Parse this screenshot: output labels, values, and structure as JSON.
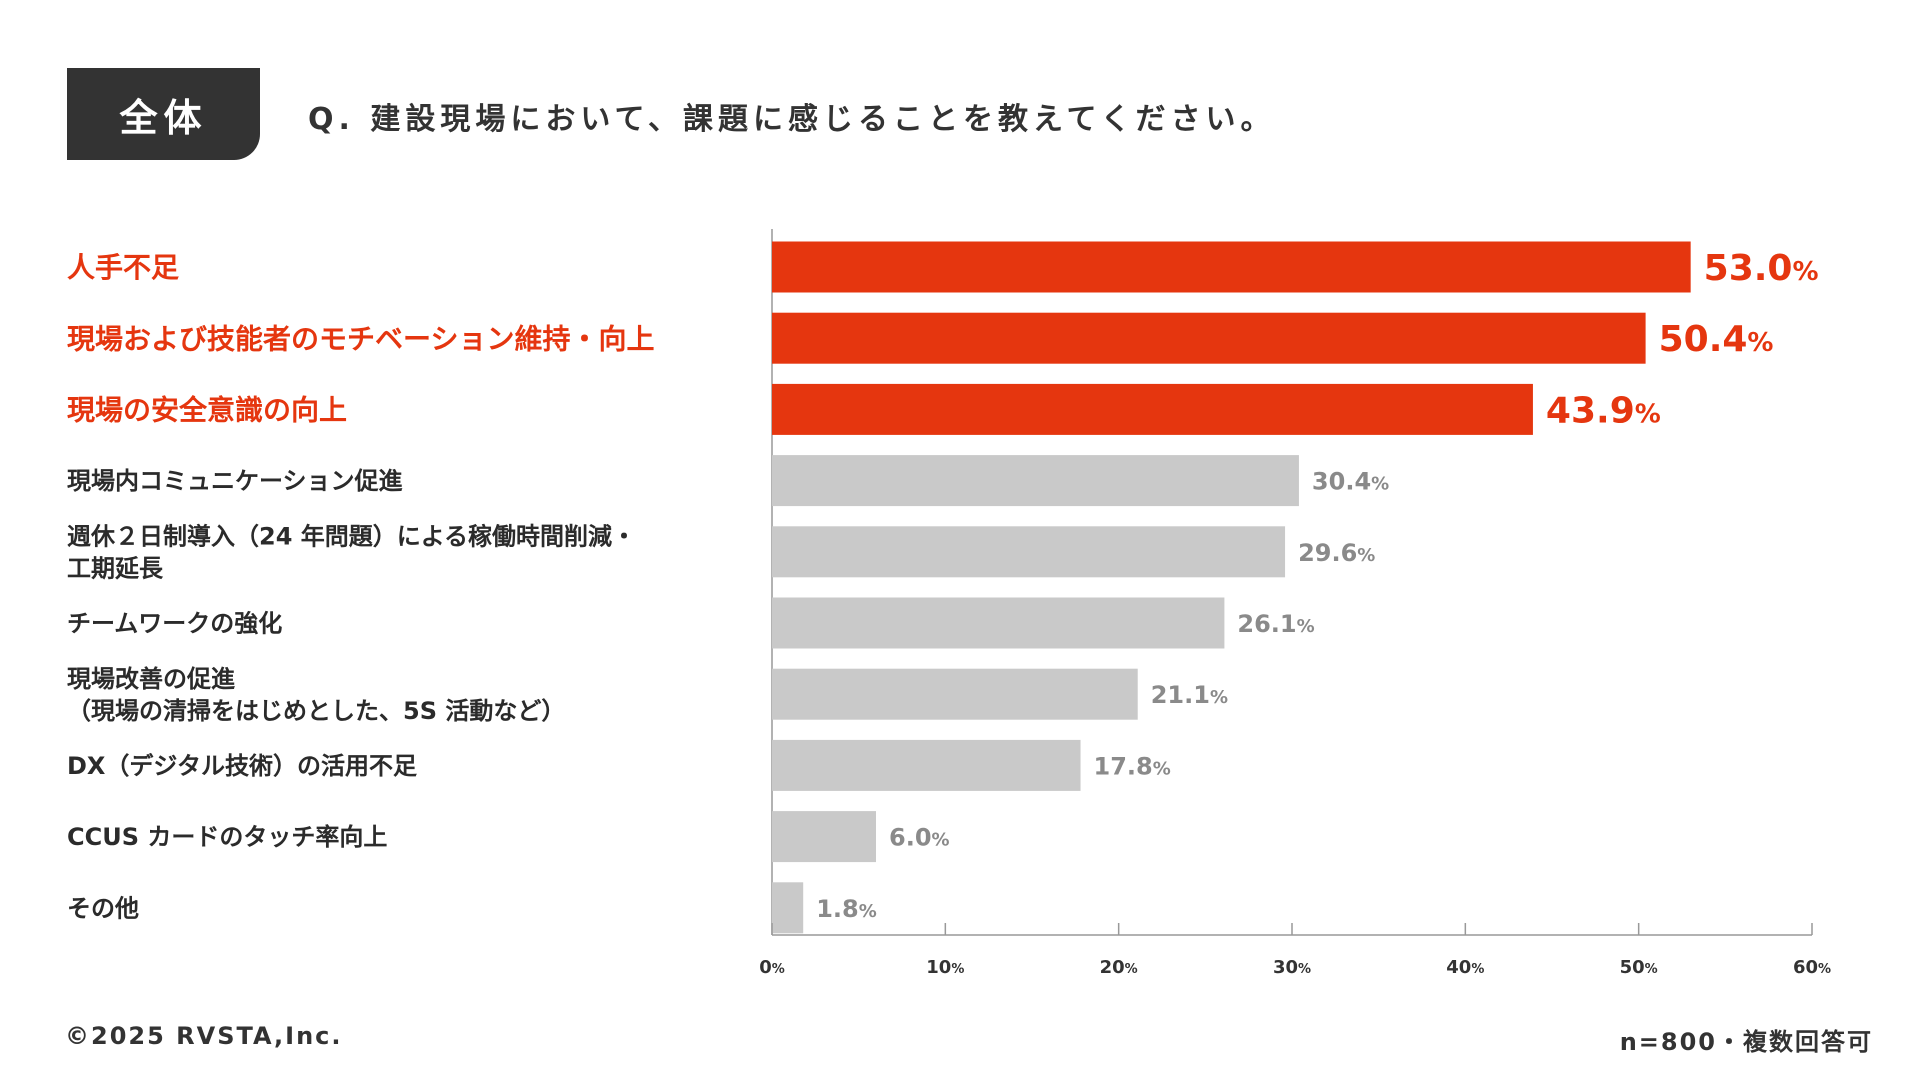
{
  "header": {
    "segment_tag": "全体",
    "question": "Q. 建設現場において、課題に感じることを教えてください。"
  },
  "chart_data": {
    "type": "bar",
    "orientation": "horizontal",
    "categories": [
      [
        "人手不足"
      ],
      [
        "現場および技能者のモチベーション維持・向上"
      ],
      [
        "現場の安全意識の向上"
      ],
      [
        "現場内コミュニケーション促進"
      ],
      [
        "週休２日制導入（24 年問題）による稼働時間削減・",
        "工期延長"
      ],
      [
        "チームワークの強化"
      ],
      [
        "現場改善の促進",
        "（現場の清掃をはじめとした、5S 活動など）"
      ],
      [
        "DX（デジタル技術）の活用不足"
      ],
      [
        "CCUS カードのタッチ率向上"
      ],
      [
        "その他"
      ]
    ],
    "values": [
      53.0,
      50.4,
      43.9,
      30.4,
      29.6,
      26.1,
      21.1,
      17.8,
      6.0,
      1.8
    ],
    "value_labels": [
      "53.0",
      "50.4",
      "43.9",
      "30.4",
      "29.6",
      "26.1",
      "21.1",
      "17.8",
      "6.0",
      "1.8"
    ],
    "value_unit": "%",
    "highlight": [
      true,
      true,
      true,
      false,
      false,
      false,
      false,
      false,
      false,
      false
    ],
    "xlim": [
      0,
      60
    ],
    "xticks": [
      0,
      10,
      20,
      30,
      40,
      50,
      60
    ],
    "tick_unit": "%",
    "colors": {
      "highlight": "#E5360F",
      "normal": "#C9C9C9",
      "normal_label": "#8A8A8A",
      "category_text": "#2B2B2B",
      "axis": "#999999"
    },
    "grid": false
  },
  "footer": {
    "copyright": "©2025 RVSTA,Inc.",
    "note": "n=800・複数回答可"
  }
}
